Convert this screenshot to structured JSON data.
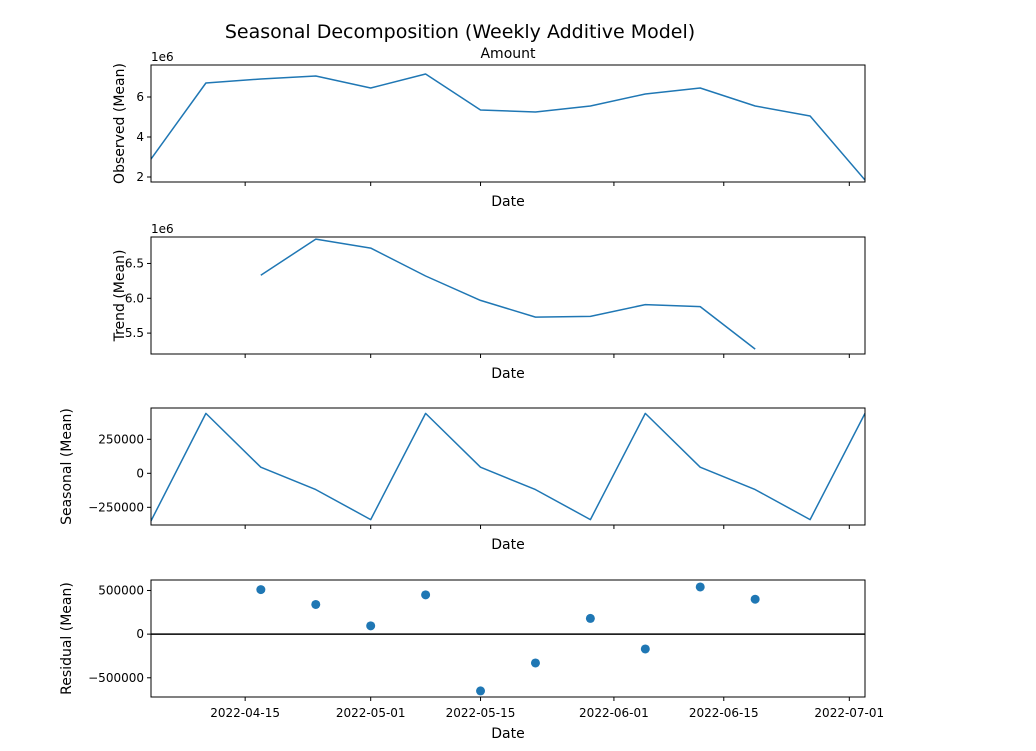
{
  "figure": {
    "title": "Seasonal Decomposition (Weekly Additive Model)"
  },
  "colors": {
    "series": "#1f77b4",
    "zero_line": "#000000",
    "axes": "#000000"
  },
  "chart_data": [
    {
      "id": "observed",
      "type": "line",
      "title": "Amount",
      "xlabel": "Date",
      "ylabel": "Observed (Mean)",
      "offset_text": "1e6",
      "xlim": [
        "2022-04-03",
        "2022-07-03"
      ],
      "ylim": [
        1.75,
        7.6
      ],
      "yscale": 1000000,
      "yticks": [
        2,
        4,
        6
      ],
      "ytick_labels": [
        "2",
        "4",
        "6"
      ],
      "x": [
        "2022-04-03",
        "2022-04-10",
        "2022-04-17",
        "2022-04-24",
        "2022-05-01",
        "2022-05-08",
        "2022-05-15",
        "2022-05-22",
        "2022-05-29",
        "2022-06-05",
        "2022-06-12",
        "2022-06-19",
        "2022-06-26",
        "2022-07-03"
      ],
      "y": [
        2900000,
        6700000,
        6900000,
        7050000,
        6450000,
        7150000,
        5350000,
        5250000,
        5550000,
        6150000,
        6450000,
        5550000,
        5050000,
        1850000
      ],
      "show_xtick_labels": false
    },
    {
      "id": "trend",
      "type": "line",
      "title": "",
      "xlabel": "Date",
      "ylabel": "Trend (Mean)",
      "offset_text": "1e6",
      "xlim": [
        "2022-04-03",
        "2022-07-03"
      ],
      "ylim": [
        5.2,
        6.88
      ],
      "yscale": 1000000,
      "yticks": [
        5.5,
        6.0,
        6.5
      ],
      "ytick_labels": [
        "5.5",
        "6.0",
        "6.5"
      ],
      "x": [
        "2022-04-17",
        "2022-04-24",
        "2022-05-01",
        "2022-05-08",
        "2022-05-15",
        "2022-05-22",
        "2022-05-29",
        "2022-06-05",
        "2022-06-12",
        "2022-06-19"
      ],
      "y": [
        6330000,
        6850000,
        6720000,
        6320000,
        5970000,
        5730000,
        5740000,
        5910000,
        5880000,
        5270000
      ],
      "show_xtick_labels": false
    },
    {
      "id": "seasonal",
      "type": "line",
      "title": "",
      "xlabel": "Date",
      "ylabel": "Seasonal (Mean)",
      "offset_text": "",
      "xlim": [
        "2022-04-03",
        "2022-07-03"
      ],
      "ylim": [
        -380000,
        480000
      ],
      "yscale": 1,
      "yticks": [
        -250000,
        0,
        250000
      ],
      "ytick_labels": [
        "−250000",
        "0",
        "250000"
      ],
      "x": [
        "2022-04-03",
        "2022-04-10",
        "2022-04-17",
        "2022-04-24",
        "2022-05-01",
        "2022-05-08",
        "2022-05-15",
        "2022-05-22",
        "2022-05-29",
        "2022-06-05",
        "2022-06-12",
        "2022-06-19",
        "2022-06-26",
        "2022-07-03"
      ],
      "y": [
        -350000,
        440000,
        45000,
        -120000,
        -340000,
        440000,
        45000,
        -120000,
        -340000,
        440000,
        45000,
        -120000,
        -340000,
        440000
      ],
      "show_xtick_labels": false
    },
    {
      "id": "residual",
      "type": "scatter",
      "title": "",
      "xlabel": "Date",
      "ylabel": "Residual (Mean)",
      "offset_text": "",
      "xlim": [
        "2022-04-03",
        "2022-07-03"
      ],
      "ylim": [
        -720000,
        620000
      ],
      "yscale": 1,
      "yticks": [
        -500000,
        0,
        500000
      ],
      "ytick_labels": [
        "−500000",
        "0",
        "500000"
      ],
      "zero_line": true,
      "x": [
        "2022-04-17",
        "2022-04-24",
        "2022-05-01",
        "2022-05-08",
        "2022-05-15",
        "2022-05-22",
        "2022-05-29",
        "2022-06-05",
        "2022-06-12",
        "2022-06-19"
      ],
      "y": [
        510000,
        340000,
        95000,
        450000,
        -650000,
        -330000,
        180000,
        -170000,
        540000,
        400000
      ],
      "show_xtick_labels": true
    }
  ],
  "x_axis": {
    "ticks": [
      "2022-04-15",
      "2022-05-01",
      "2022-05-15",
      "2022-06-01",
      "2022-06-15",
      "2022-07-01"
    ],
    "tick_labels": [
      "2022-04-15",
      "2022-05-01",
      "2022-05-15",
      "2022-06-01",
      "2022-06-15",
      "2022-07-01"
    ]
  }
}
